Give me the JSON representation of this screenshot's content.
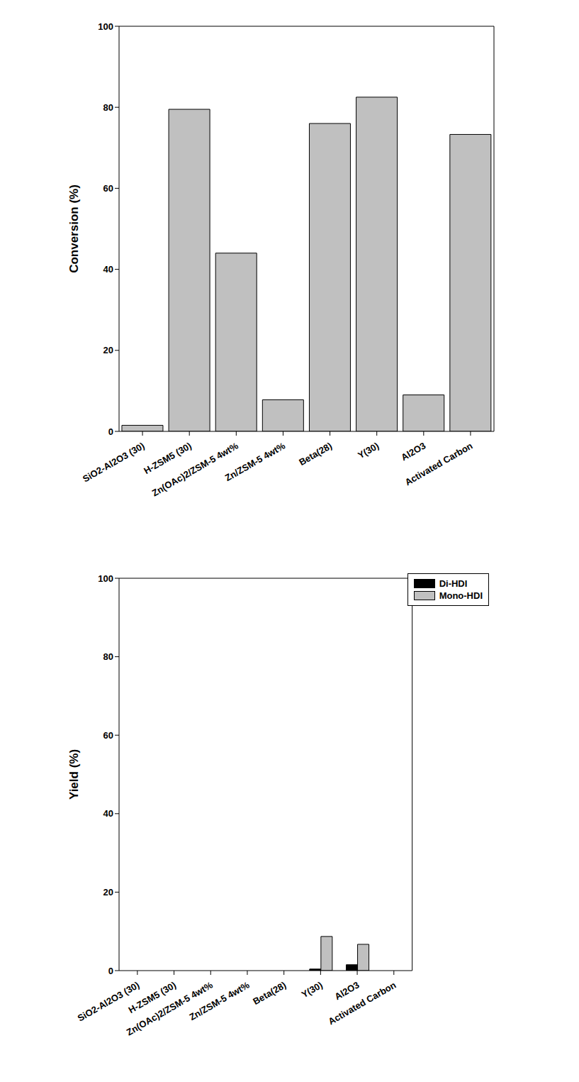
{
  "chart_data": [
    {
      "type": "bar",
      "ylabel": "Conversion (%)",
      "categories": [
        "SiO2-Al2O3 (30)",
        "H-ZSM5 (30)",
        "Zn(OAc)2/ZSM-5 4wt%",
        "Zn/ZSM-5 4wt%",
        "Beta(28)",
        "Y(30)",
        "Al2O3",
        "Activated Carbon"
      ],
      "values": [
        1.5,
        79.5,
        44,
        7.8,
        76,
        82.5,
        9,
        73.3
      ],
      "color": "#c0c0c0",
      "ylim": [
        0,
        100
      ],
      "yticks": [
        0,
        20,
        40,
        60,
        80,
        100
      ],
      "grid": false
    },
    {
      "type": "bar",
      "ylabel": "Yield (%)",
      "categories": [
        "SiO2-Al2O3 (30)",
        "H-ZSM5 (30)",
        "Zn(OAc)2/ZSM-5 4wt%",
        "Zn/ZSM-5 4wt%",
        "Beta(28)",
        "Y(30)",
        "Al2O3",
        "Activated Carbon"
      ],
      "series": [
        {
          "name": "Di-HDI",
          "color": "#000000",
          "values": [
            0,
            0,
            0,
            0,
            0,
            0.4,
            1.5,
            0
          ]
        },
        {
          "name": "Mono-HDI",
          "color": "#c0c0c0",
          "values": [
            0,
            0,
            0,
            0,
            0,
            8.7,
            6.7,
            0
          ]
        }
      ],
      "ylim": [
        0,
        100
      ],
      "yticks": [
        0,
        20,
        40,
        60,
        80,
        100
      ],
      "grid": false,
      "legend": "upper right"
    }
  ]
}
